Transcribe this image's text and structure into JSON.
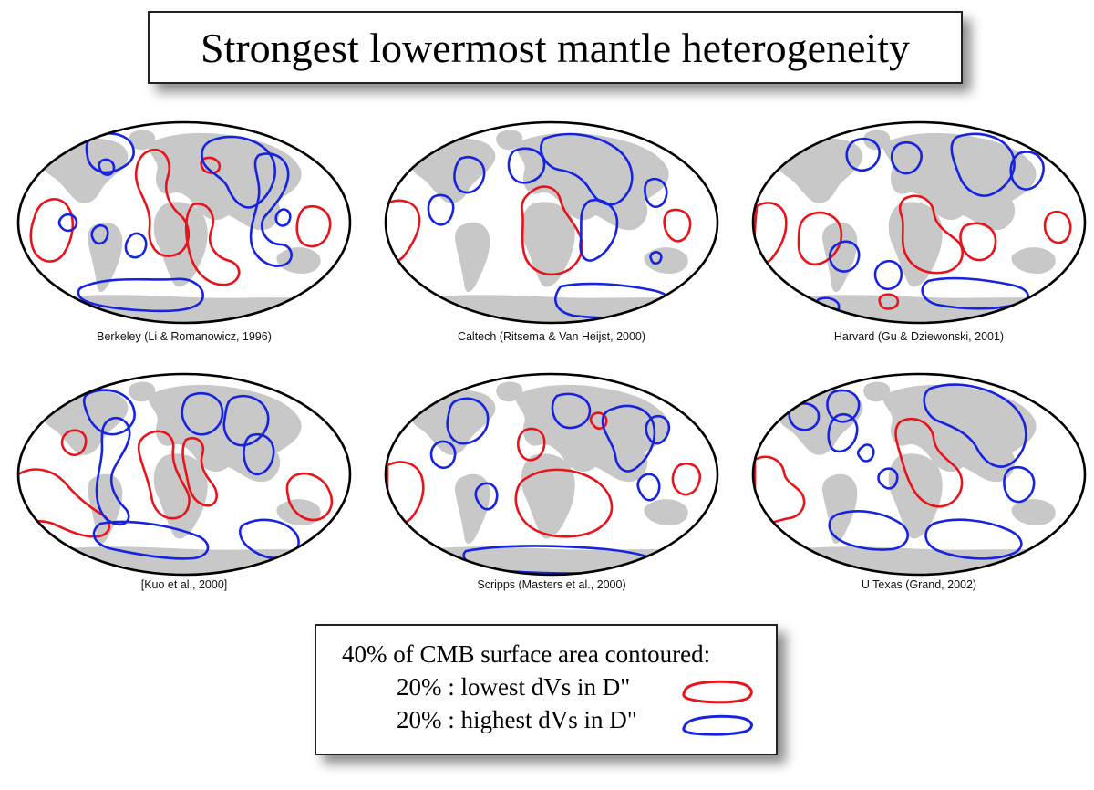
{
  "title": "Strongest lowermost mantle heterogeneity",
  "colors": {
    "low_velocity": "#e8141b",
    "high_velocity": "#1623e0",
    "land": "#c8c8c8",
    "outline": "#000000"
  },
  "maps": [
    {
      "id": "berkeley",
      "caption": "Berkeley (Li & Romanowicz, 1996)"
    },
    {
      "id": "caltech",
      "caption": "Caltech (Ritsema & Van Heijst, 2000)"
    },
    {
      "id": "harvard",
      "caption": "Harvard (Gu & Dziewonski, 2001)"
    },
    {
      "id": "kuo",
      "caption": "[Kuo et al., 2000]"
    },
    {
      "id": "scripps",
      "caption": "Scripps (Masters et al., 2000)"
    },
    {
      "id": "utexas",
      "caption": "U Texas (Grand, 2002)"
    }
  ],
  "legend": {
    "heading": "40% of CMB surface area contoured:",
    "items": [
      {
        "label": "20% : lowest dVs in D\"",
        "color": "#e8141b"
      },
      {
        "label": "20% : highest dVs in D\"",
        "color": "#1623e0"
      }
    ]
  }
}
